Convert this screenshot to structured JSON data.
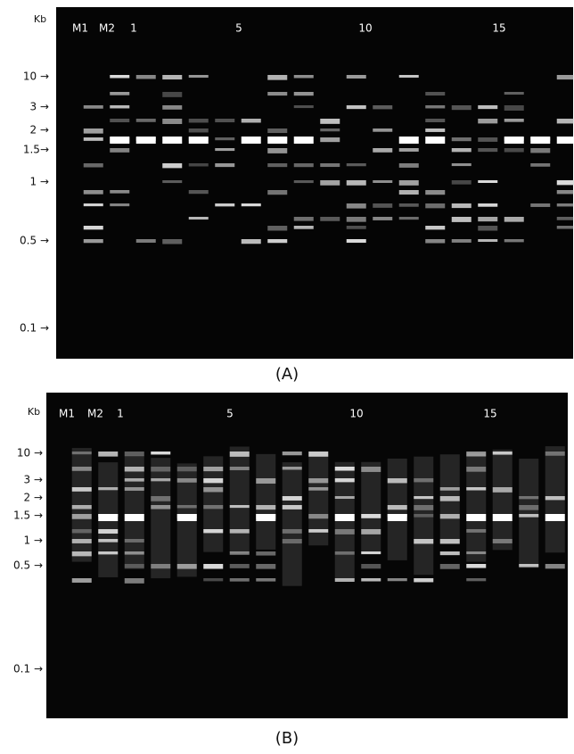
{
  "panels": [
    {
      "caption": "(A)",
      "unit": "Kb",
      "lanes": [
        "M1",
        "M2",
        "1",
        "5",
        "10",
        "15"
      ],
      "sizes": [
        "10 →",
        "3 →",
        "2 →",
        "1.5→",
        "1 →",
        "0.5 →",
        "0.1 →"
      ]
    },
    {
      "caption": "(B)",
      "unit": "Kb",
      "lanes": [
        "M1",
        "M2",
        "1",
        "5",
        "10",
        "15"
      ],
      "sizes": [
        "10 →",
        "3 →",
        "2 →",
        "1.5 →",
        "1 →",
        "0.5 →",
        "0.1 →"
      ]
    }
  ]
}
